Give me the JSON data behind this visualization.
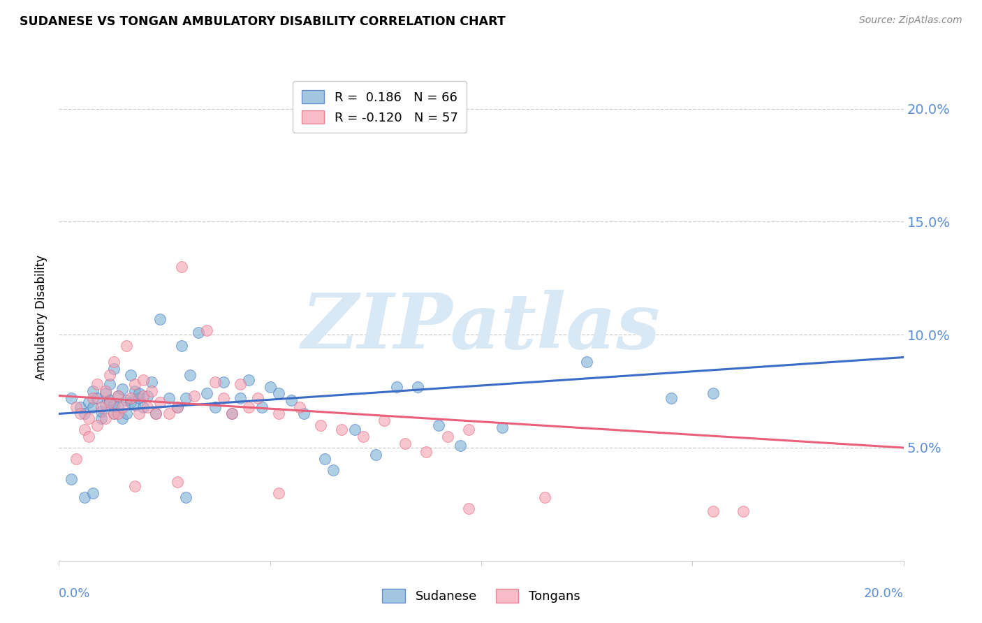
{
  "title": "SUDANESE VS TONGAN AMBULATORY DISABILITY CORRELATION CHART",
  "source": "Source: ZipAtlas.com",
  "ylabel": "Ambulatory Disability",
  "x_min": 0.0,
  "x_max": 0.2,
  "y_min": 0.0,
  "y_max": 0.215,
  "y_ticks": [
    0.05,
    0.1,
    0.15,
    0.2
  ],
  "y_tick_labels": [
    "5.0%",
    "10.0%",
    "15.0%",
    "20.0%"
  ],
  "x_ticks": [
    0.0,
    0.05,
    0.1,
    0.15,
    0.2
  ],
  "blue_color": "#7BAFD4",
  "pink_color": "#F4A0B0",
  "line_blue": "#3B6DC7",
  "line_pink": "#E8607A",
  "label_color": "#5B8ED6",
  "watermark_color": "#D8E8F4",
  "blue_scatter": [
    [
      0.003,
      0.072
    ],
    [
      0.005,
      0.068
    ],
    [
      0.006,
      0.065
    ],
    [
      0.007,
      0.07
    ],
    [
      0.008,
      0.075
    ],
    [
      0.008,
      0.068
    ],
    [
      0.009,
      0.072
    ],
    [
      0.01,
      0.063
    ],
    [
      0.01,
      0.066
    ],
    [
      0.011,
      0.069
    ],
    [
      0.011,
      0.074
    ],
    [
      0.012,
      0.071
    ],
    [
      0.012,
      0.078
    ],
    [
      0.013,
      0.065
    ],
    [
      0.013,
      0.069
    ],
    [
      0.013,
      0.085
    ],
    [
      0.014,
      0.068
    ],
    [
      0.014,
      0.073
    ],
    [
      0.015,
      0.076
    ],
    [
      0.015,
      0.063
    ],
    [
      0.016,
      0.071
    ],
    [
      0.016,
      0.065
    ],
    [
      0.017,
      0.082
    ],
    [
      0.017,
      0.07
    ],
    [
      0.018,
      0.075
    ],
    [
      0.018,
      0.069
    ],
    [
      0.019,
      0.072
    ],
    [
      0.019,
      0.074
    ],
    [
      0.02,
      0.068
    ],
    [
      0.021,
      0.073
    ],
    [
      0.022,
      0.079
    ],
    [
      0.023,
      0.065
    ],
    [
      0.024,
      0.107
    ],
    [
      0.026,
      0.072
    ],
    [
      0.028,
      0.068
    ],
    [
      0.029,
      0.095
    ],
    [
      0.03,
      0.072
    ],
    [
      0.031,
      0.082
    ],
    [
      0.033,
      0.101
    ],
    [
      0.035,
      0.074
    ],
    [
      0.037,
      0.068
    ],
    [
      0.039,
      0.079
    ],
    [
      0.041,
      0.065
    ],
    [
      0.043,
      0.072
    ],
    [
      0.045,
      0.08
    ],
    [
      0.048,
      0.068
    ],
    [
      0.05,
      0.077
    ],
    [
      0.052,
      0.074
    ],
    [
      0.055,
      0.071
    ],
    [
      0.058,
      0.065
    ],
    [
      0.063,
      0.045
    ],
    [
      0.065,
      0.04
    ],
    [
      0.07,
      0.058
    ],
    [
      0.075,
      0.047
    ],
    [
      0.08,
      0.077
    ],
    [
      0.085,
      0.077
    ],
    [
      0.09,
      0.06
    ],
    [
      0.095,
      0.051
    ],
    [
      0.105,
      0.059
    ],
    [
      0.125,
      0.088
    ],
    [
      0.145,
      0.072
    ],
    [
      0.155,
      0.074
    ],
    [
      0.003,
      0.036
    ],
    [
      0.006,
      0.028
    ],
    [
      0.008,
      0.03
    ],
    [
      0.03,
      0.028
    ]
  ],
  "pink_scatter": [
    [
      0.004,
      0.068
    ],
    [
      0.005,
      0.065
    ],
    [
      0.006,
      0.058
    ],
    [
      0.007,
      0.063
    ],
    [
      0.008,
      0.072
    ],
    [
      0.009,
      0.078
    ],
    [
      0.009,
      0.06
    ],
    [
      0.01,
      0.068
    ],
    [
      0.011,
      0.075
    ],
    [
      0.011,
      0.063
    ],
    [
      0.012,
      0.07
    ],
    [
      0.012,
      0.082
    ],
    [
      0.013,
      0.065
    ],
    [
      0.013,
      0.088
    ],
    [
      0.014,
      0.073
    ],
    [
      0.014,
      0.065
    ],
    [
      0.015,
      0.068
    ],
    [
      0.016,
      0.095
    ],
    [
      0.017,
      0.072
    ],
    [
      0.018,
      0.078
    ],
    [
      0.019,
      0.065
    ],
    [
      0.02,
      0.08
    ],
    [
      0.02,
      0.073
    ],
    [
      0.021,
      0.068
    ],
    [
      0.022,
      0.075
    ],
    [
      0.023,
      0.065
    ],
    [
      0.024,
      0.07
    ],
    [
      0.026,
      0.065
    ],
    [
      0.028,
      0.068
    ],
    [
      0.029,
      0.13
    ],
    [
      0.032,
      0.073
    ],
    [
      0.035,
      0.102
    ],
    [
      0.037,
      0.079
    ],
    [
      0.039,
      0.072
    ],
    [
      0.041,
      0.065
    ],
    [
      0.043,
      0.078
    ],
    [
      0.045,
      0.068
    ],
    [
      0.047,
      0.072
    ],
    [
      0.052,
      0.065
    ],
    [
      0.057,
      0.068
    ],
    [
      0.062,
      0.06
    ],
    [
      0.067,
      0.058
    ],
    [
      0.072,
      0.055
    ],
    [
      0.077,
      0.062
    ],
    [
      0.082,
      0.052
    ],
    [
      0.087,
      0.048
    ],
    [
      0.092,
      0.055
    ],
    [
      0.097,
      0.058
    ],
    [
      0.004,
      0.045
    ],
    [
      0.018,
      0.033
    ],
    [
      0.028,
      0.035
    ],
    [
      0.052,
      0.03
    ],
    [
      0.097,
      0.023
    ],
    [
      0.155,
      0.022
    ],
    [
      0.162,
      0.022
    ],
    [
      0.007,
      0.055
    ],
    [
      0.115,
      0.028
    ]
  ],
  "blue_line_x": [
    0.0,
    0.2
  ],
  "blue_line_y": [
    0.065,
    0.09
  ],
  "pink_line_x": [
    0.0,
    0.2
  ],
  "pink_line_y": [
    0.073,
    0.05
  ]
}
